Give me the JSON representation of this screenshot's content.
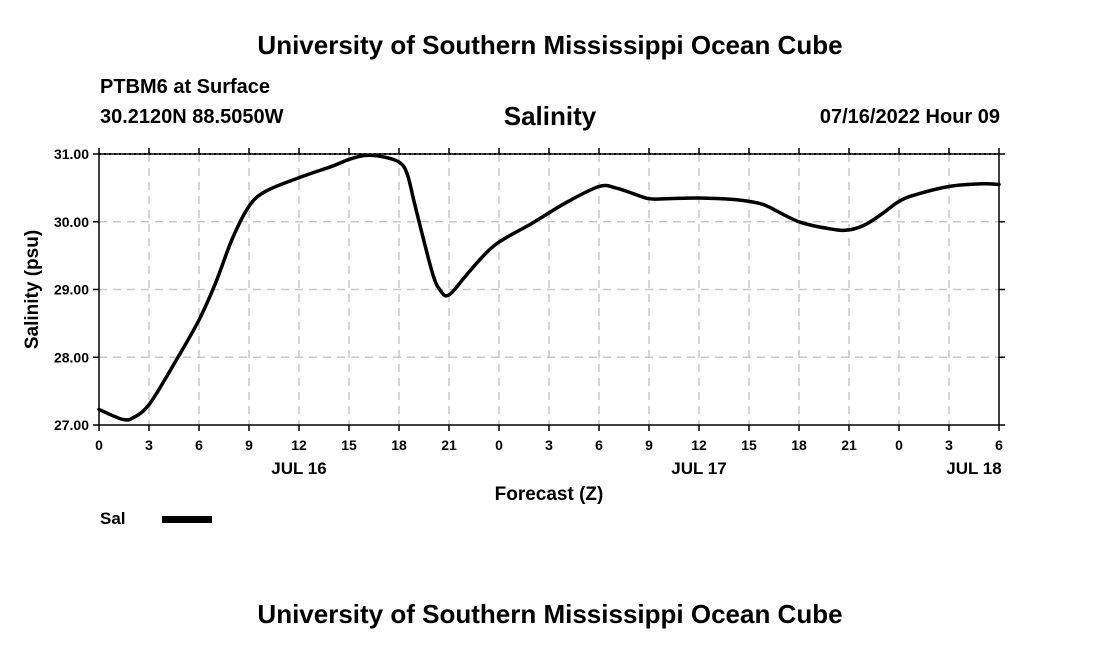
{
  "header": {
    "title": "University of Southern Mississippi Ocean Cube",
    "station": "PTBM6 at Surface",
    "coords": "30.2120N  88.5050W",
    "datetime": "07/16/2022 Hour 09"
  },
  "footer": {
    "title": "University of Southern Mississippi Ocean Cube"
  },
  "legend": {
    "label": "Sal"
  },
  "chart_data": {
    "type": "line",
    "title": "Salinity",
    "xlabel": "Forecast (Z)",
    "ylabel": "Salinity (psu)",
    "ylim": [
      27.0,
      31.0
    ],
    "xlim": [
      0,
      54
    ],
    "yticks": [
      "27.00",
      "28.00",
      "29.00",
      "30.00",
      "31.00"
    ],
    "xticks": [
      {
        "h": 0,
        "label": "0"
      },
      {
        "h": 3,
        "label": "3"
      },
      {
        "h": 6,
        "label": "6"
      },
      {
        "h": 9,
        "label": "9"
      },
      {
        "h": 12,
        "label": "12"
      },
      {
        "h": 15,
        "label": "15"
      },
      {
        "h": 18,
        "label": "18"
      },
      {
        "h": 21,
        "label": "21"
      },
      {
        "h": 24,
        "label": "0"
      },
      {
        "h": 27,
        "label": "3"
      },
      {
        "h": 30,
        "label": "6"
      },
      {
        "h": 33,
        "label": "9"
      },
      {
        "h": 36,
        "label": "12"
      },
      {
        "h": 39,
        "label": "15"
      },
      {
        "h": 42,
        "label": "18"
      },
      {
        "h": 45,
        "label": "21"
      },
      {
        "h": 48,
        "label": "0"
      },
      {
        "h": 51,
        "label": "3"
      },
      {
        "h": 54,
        "label": "6"
      }
    ],
    "date_labels": [
      {
        "h": 12,
        "label": "JUL 16"
      },
      {
        "h": 36,
        "label": "JUL 17"
      },
      {
        "h": 52.5,
        "label": "JUL 18"
      }
    ],
    "grid": true,
    "series": [
      {
        "name": "Sal",
        "color": "#000000",
        "x": [
          0,
          1,
          1.5,
          2,
          3,
          4.5,
          6,
          7,
          8,
          9,
          10,
          12,
          14,
          15,
          16,
          17,
          18,
          18.5,
          19,
          20,
          20.5,
          21,
          22,
          23,
          24,
          26,
          28,
          30,
          31,
          32,
          33,
          34,
          36,
          38,
          39,
          40,
          42,
          44,
          45,
          46,
          47,
          48,
          49,
          51,
          53,
          54
        ],
        "values": [
          27.23,
          27.12,
          27.08,
          27.1,
          27.3,
          27.9,
          28.55,
          29.1,
          29.75,
          30.23,
          30.45,
          30.65,
          30.82,
          30.92,
          30.98,
          30.96,
          30.88,
          30.7,
          30.2,
          29.25,
          28.98,
          28.92,
          29.2,
          29.48,
          29.7,
          29.98,
          30.28,
          30.52,
          30.5,
          30.42,
          30.34,
          30.34,
          30.35,
          30.33,
          30.3,
          30.24,
          30.0,
          29.89,
          29.88,
          29.96,
          30.12,
          30.3,
          30.4,
          30.52,
          30.56,
          30.55
        ]
      }
    ]
  }
}
